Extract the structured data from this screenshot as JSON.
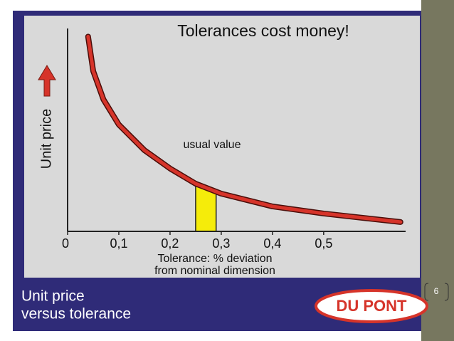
{
  "chart_data": {
    "type": "line",
    "title": "Tolerances cost money!",
    "y_label": "Unit price",
    "x_label": [
      "Tolerance: % deviation",
      "from nominal dimension"
    ],
    "annotation": "usual value",
    "caption": [
      "Unit price",
      "versus tolerance"
    ],
    "logo": "DU PONT",
    "slide_number": "6",
    "xlim": [
      0,
      0.66
    ],
    "ylim": [
      0,
      100
    ],
    "xticks": [
      0,
      {
        "value": 0.1,
        "label": "0,1"
      },
      {
        "value": 0.2,
        "label": "0,2"
      },
      {
        "value": 0.3,
        "label": "0,3"
      },
      {
        "value": 0.4,
        "label": "0,4"
      },
      {
        "value": 0.5,
        "label": "0,5"
      }
    ],
    "highlight": {
      "x": [
        0.25,
        0.29
      ],
      "color": "#f5ec0a"
    },
    "series": [
      {
        "color": "#d6342a",
        "x": [
          0.04,
          0.05,
          0.07,
          0.1,
          0.15,
          0.2,
          0.25,
          0.3,
          0.4,
          0.5,
          0.65
        ],
        "values": [
          96,
          79,
          65,
          52.6,
          40,
          31,
          23.5,
          18.6,
          12.3,
          8.8,
          4.6
        ]
      }
    ]
  }
}
